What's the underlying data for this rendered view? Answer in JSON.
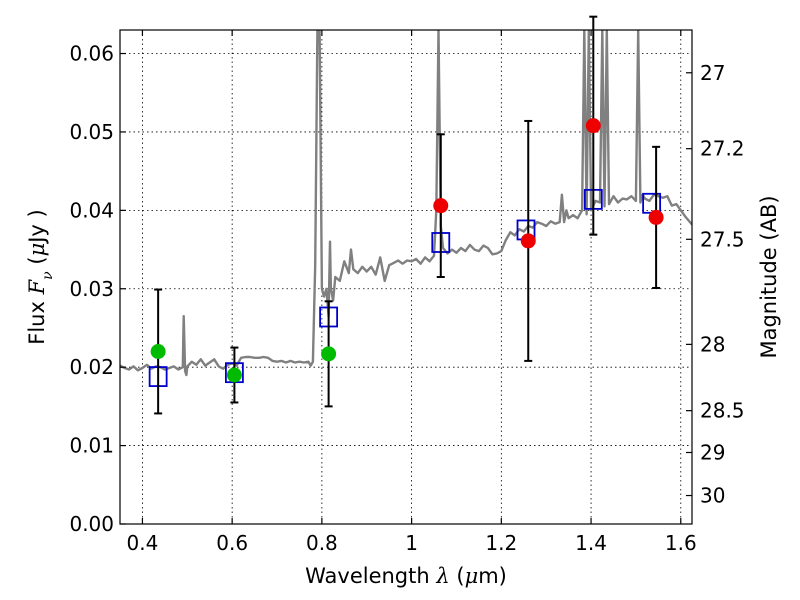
{
  "chart_data": {
    "type": "scatter",
    "xlabel_prefix": "Wavelength",
    "xlabel_symbol": "λ",
    "xlabel_unit_open": " (",
    "xlabel_unit_mu": "μ",
    "xlabel_unit_rest": "m)",
    "ylabel_prefix": "Flux",
    "ylabel_symbol": "F",
    "ylabel_sub": "ν",
    "ylabel_unit_open": "(",
    "ylabel_unit_mu": "μ",
    "ylabel_unit_rest": "Jy )",
    "y2label": "Magnitude (AB)",
    "xlim": [
      0.35,
      1.625
    ],
    "ylim": [
      0.0,
      0.063
    ],
    "grid": true,
    "x_ticks": [
      0.4,
      0.6,
      0.8,
      1.0,
      1.2,
      1.4,
      1.6
    ],
    "x_tick_labels": [
      "0.4",
      "0.6",
      "0.8",
      "1",
      "1.2",
      "1.4",
      "1.6"
    ],
    "y_ticks": [
      0.0,
      0.01,
      0.02,
      0.03,
      0.04,
      0.05,
      0.06
    ],
    "y_tick_labels": [
      "0.00",
      "0.01",
      "0.02",
      "0.03",
      "0.04",
      "0.05",
      "0.06"
    ],
    "y2_ticks": [
      27.0,
      27.2,
      27.5,
      28.0,
      28.5,
      29.0,
      30.0
    ],
    "y2_tick_labels": [
      "27",
      "27.2",
      "27.5",
      "28",
      "28.5",
      "29",
      "30"
    ],
    "colors": {
      "template": "#808080",
      "model_box": "#0000cc",
      "green_point": "#00bb00",
      "red_point": "#ee0000",
      "errorbar": "#000000"
    },
    "series": [
      {
        "kind": "template-spectrum",
        "color": "#808080",
        "x": [
          0.35,
          0.36,
          0.37,
          0.38,
          0.39,
          0.4,
          0.41,
          0.42,
          0.43,
          0.44,
          0.45,
          0.46,
          0.47,
          0.48,
          0.49,
          0.492,
          0.495,
          0.498,
          0.5,
          0.51,
          0.52,
          0.53,
          0.54,
          0.55,
          0.56,
          0.57,
          0.58,
          0.59,
          0.6,
          0.61,
          0.62,
          0.63,
          0.64,
          0.65,
          0.66,
          0.67,
          0.68,
          0.69,
          0.7,
          0.71,
          0.72,
          0.73,
          0.74,
          0.75,
          0.76,
          0.77,
          0.775,
          0.78,
          0.785,
          0.79,
          0.795,
          0.8,
          0.805,
          0.81,
          0.815,
          0.818,
          0.82,
          0.825,
          0.83,
          0.84,
          0.85,
          0.86,
          0.865,
          0.87,
          0.88,
          0.89,
          0.9,
          0.91,
          0.92,
          0.93,
          0.94,
          0.95,
          0.96,
          0.97,
          0.98,
          0.99,
          1.0,
          1.01,
          1.02,
          1.03,
          1.04,
          1.05,
          1.055,
          1.06,
          1.065,
          1.07,
          1.08,
          1.09,
          1.1,
          1.11,
          1.12,
          1.13,
          1.14,
          1.15,
          1.16,
          1.17,
          1.18,
          1.19,
          1.2,
          1.21,
          1.22,
          1.23,
          1.24,
          1.25,
          1.26,
          1.27,
          1.28,
          1.29,
          1.3,
          1.31,
          1.32,
          1.33,
          1.335,
          1.34,
          1.345,
          1.35,
          1.36,
          1.37,
          1.38,
          1.385,
          1.39,
          1.395,
          1.4,
          1.41,
          1.42,
          1.425,
          1.43,
          1.435,
          1.44,
          1.45,
          1.46,
          1.47,
          1.48,
          1.49,
          1.5,
          1.505,
          1.51,
          1.515,
          1.52,
          1.53,
          1.54,
          1.55,
          1.56,
          1.57,
          1.58,
          1.59,
          1.6,
          1.61,
          1.625
        ],
        "values": [
          0.0202,
          0.0199,
          0.0197,
          0.0201,
          0.0196,
          0.0199,
          0.0203,
          0.0198,
          0.0201,
          0.02,
          0.0197,
          0.0199,
          0.0201,
          0.0197,
          0.02,
          0.0265,
          0.0195,
          0.019,
          0.0201,
          0.0207,
          0.0203,
          0.021,
          0.0202,
          0.0206,
          0.021,
          0.0201,
          0.0198,
          0.0203,
          0.0205,
          0.0202,
          0.0212,
          0.0213,
          0.0213,
          0.0212,
          0.0212,
          0.0213,
          0.0212,
          0.0208,
          0.0207,
          0.0208,
          0.0206,
          0.0208,
          0.0206,
          0.0207,
          0.0206,
          0.0207,
          0.0202,
          0.0207,
          0.033,
          0.063,
          0.063,
          0.03,
          0.029,
          0.03,
          0.0265,
          0.036,
          0.03,
          0.0285,
          0.0315,
          0.031,
          0.0335,
          0.032,
          0.035,
          0.0325,
          0.032,
          0.0328,
          0.0322,
          0.0328,
          0.0318,
          0.034,
          0.031,
          0.033,
          0.0333,
          0.0336,
          0.0332,
          0.0336,
          0.0335,
          0.0338,
          0.0332,
          0.034,
          0.0335,
          0.0342,
          0.04,
          0.063,
          0.038,
          0.0352,
          0.0345,
          0.035,
          0.0346,
          0.0352,
          0.0348,
          0.0356,
          0.035,
          0.0348,
          0.0355,
          0.0352,
          0.0344,
          0.0345,
          0.0348,
          0.0362,
          0.0372,
          0.0368,
          0.0376,
          0.0373,
          0.038,
          0.0378,
          0.0385,
          0.0383,
          0.038,
          0.0386,
          0.0383,
          0.0385,
          0.042,
          0.0385,
          0.04,
          0.039,
          0.0394,
          0.039,
          0.04,
          0.063,
          0.0395,
          0.063,
          0.04,
          0.0412,
          0.041,
          0.063,
          0.0405,
          0.063,
          0.0408,
          0.0418,
          0.041,
          0.0415,
          0.0414,
          0.0418,
          0.0412,
          0.063,
          0.041,
          0.042,
          0.0415,
          0.0412,
          0.042,
          0.0418,
          0.0416,
          0.0418,
          0.0406,
          0.0408,
          0.04,
          0.0392,
          0.0382
        ]
      },
      {
        "kind": "model-boxes",
        "color": "#0000cc",
        "x": [
          0.435,
          0.605,
          0.815,
          1.065,
          1.255,
          1.405,
          1.535
        ],
        "values": [
          0.0188,
          0.0193,
          0.0264,
          0.0359,
          0.0375,
          0.0414,
          0.0409
        ]
      },
      {
        "kind": "green-points",
        "color": "#00bb00",
        "x": [
          0.435,
          0.605,
          0.815
        ],
        "values": [
          0.022,
          0.019,
          0.0217
        ],
        "errors": [
          0.0079,
          0.0035,
          0.0067
        ]
      },
      {
        "kind": "red-points",
        "color": "#ee0000",
        "x": [
          1.065,
          1.26,
          1.405,
          1.545
        ],
        "values": [
          0.0406,
          0.0361,
          0.0508,
          0.0391
        ],
        "errors": [
          0.0091,
          0.0153,
          0.0139,
          0.009
        ]
      }
    ]
  }
}
